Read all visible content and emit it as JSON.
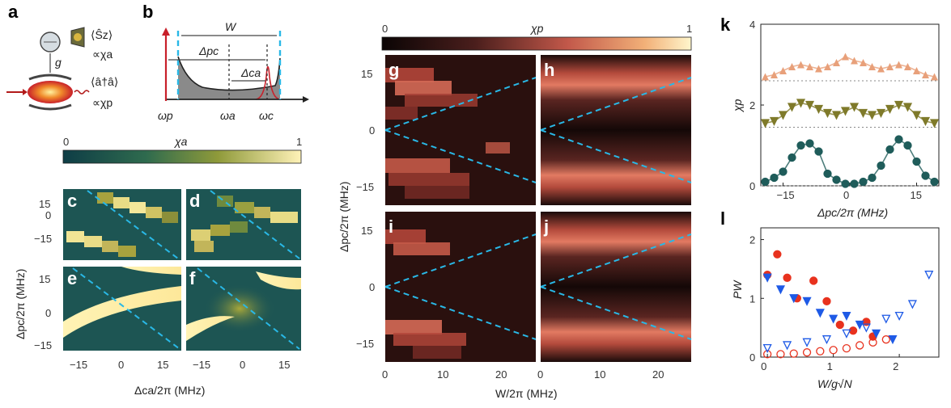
{
  "panels": {
    "a": "a",
    "b": "b",
    "c": "c",
    "d": "d",
    "e": "e",
    "f": "f",
    "g": "g",
    "h": "h",
    "i": "i",
    "j": "j",
    "k": "k",
    "l": "l"
  },
  "schematic": {
    "coupling": "g",
    "spin_label": "⟨Ŝz⟩",
    "spin_prop": "∝χa",
    "photon_label": "⟨â†â⟩",
    "photon_prop": "∝χp"
  },
  "spectrum": {
    "width_label": "W",
    "delta_pc": "Δpc",
    "delta_ca": "Δca",
    "omega_p": "ωp",
    "omega_a": "ωa",
    "omega_c": "ωc"
  },
  "colorbar_a": {
    "title": "χa",
    "min": "0",
    "max": "1"
  },
  "colorbar_p": {
    "title": "χp",
    "min": "0",
    "max": "1"
  },
  "left_maps": {
    "ylabel": "Δpc/2π (MHz)",
    "xlabel": "Δca/2π (MHz)",
    "yticks": [
      "15",
      "0",
      "−15"
    ],
    "xticks": [
      "−15",
      "0",
      "15"
    ]
  },
  "mid_maps": {
    "ylabel": "Δpc/2π (MHz)",
    "xlabel": "W/2π (MHz)",
    "yticks": [
      "15",
      "0",
      "−15"
    ],
    "xticks": [
      "0",
      "10",
      "20"
    ]
  },
  "chart_data": [
    {
      "type": "scatter",
      "panel": "k",
      "xlabel": "Δpc/2π (MHz)",
      "ylabel": "χp",
      "ylim": [
        0,
        4
      ],
      "xlim": [
        -20,
        20
      ],
      "xticks": [
        "−15",
        "0",
        "15"
      ],
      "yticks": [
        "0",
        "2",
        "4"
      ],
      "series": [
        {
          "marker": "circle",
          "color": "#1f5c5a",
          "offset": 0,
          "x": [
            -19,
            -17,
            -15,
            -13,
            -11,
            -9,
            -7,
            -5,
            -3,
            -1,
            1,
            3,
            5,
            7,
            9,
            11,
            13,
            15,
            17,
            19
          ],
          "y": [
            0.1,
            0.2,
            0.35,
            0.7,
            1.0,
            1.05,
            0.85,
            0.3,
            0.15,
            0.05,
            0.05,
            0.1,
            0.2,
            0.5,
            0.9,
            1.15,
            1.0,
            0.6,
            0.25,
            0.1
          ]
        },
        {
          "marker": "triangle-down",
          "color": "#7f7a2a",
          "offset": 1.45,
          "x": [
            -19,
            -17,
            -15,
            -13,
            -11,
            -9,
            -7,
            -5,
            -3,
            -1,
            1,
            3,
            5,
            7,
            9,
            11,
            13,
            15,
            17,
            19
          ],
          "y": [
            1.55,
            1.6,
            1.75,
            1.95,
            2.05,
            2.0,
            1.9,
            1.8,
            1.75,
            1.85,
            1.95,
            1.8,
            1.75,
            1.8,
            1.9,
            2.0,
            1.95,
            1.75,
            1.6,
            1.55
          ]
        },
        {
          "marker": "triangle-up",
          "color": "#e8a07a",
          "offset": 2.6,
          "x": [
            -19,
            -17,
            -15,
            -13,
            -11,
            -9,
            -7,
            -5,
            -3,
            -1,
            1,
            3,
            5,
            7,
            9,
            11,
            13,
            15,
            17,
            19
          ],
          "y": [
            2.7,
            2.75,
            2.85,
            2.95,
            3.0,
            2.95,
            2.9,
            2.95,
            3.05,
            3.2,
            3.1,
            3.05,
            2.95,
            2.9,
            2.95,
            3.0,
            2.95,
            2.85,
            2.75,
            2.7
          ]
        }
      ]
    },
    {
      "type": "scatter",
      "panel": "l",
      "xlabel": "W/g√N",
      "ylabel": "PW",
      "ylim": [
        0,
        2.2
      ],
      "xlim": [
        -0.1,
        2.6
      ],
      "xticks": [
        "0",
        "1",
        "2"
      ],
      "yticks": [
        "0",
        "1",
        "2"
      ],
      "series": [
        {
          "marker": "filled-circle",
          "color": "#e8321e",
          "x": [
            0,
            0.15,
            0.3,
            0.45,
            0.7,
            0.9,
            1.1,
            1.3,
            1.5,
            1.6
          ],
          "y": [
            1.4,
            1.75,
            1.35,
            1.0,
            1.3,
            0.95,
            0.55,
            0.45,
            0.6,
            0.35
          ]
        },
        {
          "marker": "filled-triangle-down",
          "color": "#1e5ae6",
          "x": [
            0,
            0.2,
            0.4,
            0.6,
            0.8,
            1.0,
            1.2,
            1.4,
            1.65,
            1.9
          ],
          "y": [
            1.35,
            1.15,
            1.0,
            0.95,
            0.75,
            0.65,
            0.7,
            0.55,
            0.4,
            0.3
          ]
        },
        {
          "marker": "open-circle",
          "color": "#e8321e",
          "x": [
            0,
            0.2,
            0.4,
            0.6,
            0.8,
            1.0,
            1.2,
            1.4,
            1.6,
            1.8
          ],
          "y": [
            0.05,
            0.05,
            0.06,
            0.08,
            0.1,
            0.12,
            0.15,
            0.2,
            0.25,
            0.3
          ]
        },
        {
          "marker": "open-triangle-down",
          "color": "#1e5ae6",
          "x": [
            0,
            0.3,
            0.6,
            0.9,
            1.2,
            1.5,
            1.8,
            2.0,
            2.2,
            2.45
          ],
          "y": [
            0.15,
            0.2,
            0.25,
            0.3,
            0.4,
            0.5,
            0.65,
            0.7,
            0.9,
            1.4
          ]
        }
      ]
    }
  ]
}
